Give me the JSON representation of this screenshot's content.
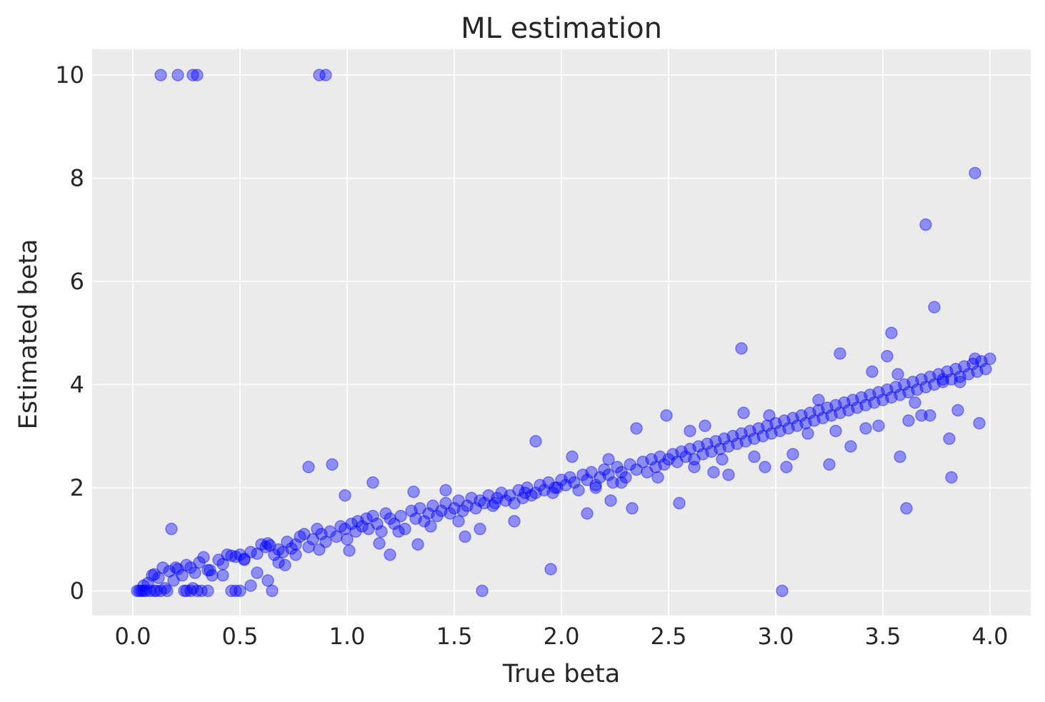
{
  "chart_data": {
    "type": "scatter",
    "title": "ML estimation",
    "xlabel": "True beta",
    "ylabel": "Estimated beta",
    "xlim": [
      -0.19,
      4.19
    ],
    "ylim": [
      -0.48,
      10.5
    ],
    "xticks": [
      0.0,
      0.5,
      1.0,
      1.5,
      2.0,
      2.5,
      3.0,
      3.5,
      4.0
    ],
    "xtick_labels": [
      "0.0",
      "0.5",
      "1.0",
      "1.5",
      "2.0",
      "2.5",
      "3.0",
      "3.5",
      "4.0"
    ],
    "yticks": [
      0,
      2,
      4,
      6,
      8,
      10
    ],
    "ytick_labels": [
      "0",
      "2",
      "4",
      "6",
      "8",
      "10"
    ],
    "grid": true,
    "background": "#ebebeb",
    "point_color": "#0000ff",
    "point_alpha": 0.4,
    "series": [
      {
        "x": [
          0.02,
          0.03,
          0.04,
          0.05,
          0.06,
          0.08,
          0.1,
          0.11,
          0.13,
          0.16,
          0.24,
          0.25,
          0.27,
          0.3,
          0.32,
          0.35,
          0.46,
          0.48,
          0.5,
          0.65,
          1.63,
          3.03,
          0.13,
          0.21,
          0.28,
          0.3,
          0.87,
          0.9,
          3.93,
          3.7,
          3.74,
          2.84,
          3.54,
          3.61,
          3.82,
          1.95,
          0.18,
          0.05,
          0.07,
          0.09,
          0.1,
          0.12,
          0.14,
          0.17,
          0.19,
          0.21,
          0.23,
          0.25,
          0.27,
          0.29,
          0.31,
          0.33,
          0.35,
          0.37,
          0.4,
          0.42,
          0.44,
          0.46,
          0.48,
          0.5,
          0.52,
          0.55,
          0.58,
          0.6,
          0.62,
          0.63,
          0.64,
          0.66,
          0.68,
          0.7,
          0.72,
          0.74,
          0.76,
          0.78,
          0.8,
          0.82,
          0.84,
          0.86,
          0.88,
          0.9,
          0.92,
          0.95,
          0.97,
          0.99,
          1.0,
          1.02,
          1.04,
          1.05,
          1.07,
          1.09,
          1.1,
          1.12,
          1.14,
          1.16,
          1.18,
          1.2,
          1.22,
          1.25,
          1.27,
          1.3,
          1.32,
          1.34,
          1.36,
          1.38,
          1.4,
          1.42,
          1.44,
          1.46,
          1.48,
          1.5,
          1.52,
          1.54,
          1.56,
          1.58,
          1.6,
          1.62,
          1.64,
          1.66,
          1.68,
          1.7,
          1.72,
          1.74,
          1.76,
          1.78,
          1.8,
          1.82,
          1.84,
          1.86,
          1.88,
          1.9,
          1.92,
          1.94,
          1.96,
          1.98,
          2.0,
          2.02,
          2.04,
          2.06,
          2.08,
          2.1,
          2.12,
          2.14,
          2.16,
          2.18,
          2.2,
          2.22,
          2.24,
          2.26,
          2.28,
          2.3,
          2.32,
          2.35,
          2.38,
          2.4,
          2.42,
          2.44,
          2.46,
          2.48,
          2.5,
          2.52,
          2.54,
          2.56,
          2.58,
          2.6,
          2.62,
          2.64,
          2.66,
          2.68,
          2.7,
          2.72,
          2.74,
          2.76,
          2.78,
          2.8,
          2.82,
          2.84,
          2.86,
          2.88,
          2.9,
          2.92,
          2.94,
          2.96,
          2.98,
          3.0,
          3.02,
          3.04,
          3.06,
          3.08,
          3.1,
          3.12,
          3.14,
          3.16,
          3.18,
          3.2,
          3.22,
          3.24,
          3.26,
          3.28,
          3.3,
          3.32,
          3.34,
          3.36,
          3.38,
          3.4,
          3.42,
          3.44,
          3.46,
          3.48,
          3.5,
          3.52,
          3.54,
          3.56,
          3.58,
          3.6,
          3.62,
          3.64,
          3.66,
          3.68,
          3.7,
          3.72,
          3.74,
          3.76,
          3.78,
          3.8,
          3.82,
          3.84,
          3.86,
          3.88,
          3.9,
          3.92,
          3.94,
          3.96,
          3.98,
          4.0,
          0.82,
          0.93,
          0.99,
          1.12,
          1.31,
          1.46,
          1.88,
          2.05,
          2.22,
          2.35,
          2.49,
          2.6,
          2.67,
          2.85,
          2.97,
          3.2,
          3.3,
          3.45,
          3.52,
          3.57,
          3.65,
          3.78,
          3.86,
          3.93,
          0.58,
          0.63,
          0.55,
          0.68,
          1.2,
          1.33,
          1.55,
          1.62,
          1.78,
          2.12,
          2.23,
          2.33,
          2.55,
          2.71,
          2.78,
          2.95,
          3.08,
          3.25,
          3.35,
          3.58,
          3.62,
          3.72,
          3.81,
          3.95,
          0.15,
          0.2,
          0.28,
          0.36,
          0.42,
          0.52,
          0.71,
          0.76,
          0.87,
          1.01,
          1.15,
          1.24,
          1.39,
          1.52,
          1.69,
          1.83,
          1.97,
          2.16,
          2.28,
          2.45,
          2.62,
          2.75,
          2.9,
          3.05,
          3.15,
          3.28,
          3.42,
          3.48,
          3.68,
          3.85
        ],
        "y": [
          0.0,
          0.0,
          0.0,
          0.0,
          0.0,
          0.0,
          0.0,
          0.0,
          0.0,
          0.0,
          0.0,
          0.0,
          0.0,
          0.0,
          0.0,
          0.0,
          0.0,
          0.0,
          0.0,
          0.0,
          0.0,
          0.0,
          10.0,
          10.0,
          10.0,
          10.0,
          10.0,
          10.0,
          8.1,
          7.1,
          5.5,
          4.7,
          5.0,
          1.6,
          2.2,
          0.42,
          1.2,
          0.1,
          0.15,
          0.3,
          0.32,
          0.25,
          0.45,
          0.38,
          0.2,
          0.42,
          0.3,
          0.5,
          0.45,
          0.35,
          0.55,
          0.65,
          0.4,
          0.3,
          0.6,
          0.52,
          0.7,
          0.68,
          0.66,
          0.7,
          0.62,
          0.75,
          0.72,
          0.9,
          0.85,
          0.92,
          0.88,
          0.7,
          0.8,
          0.75,
          0.95,
          0.82,
          0.9,
          1.05,
          1.1,
          0.85,
          1.0,
          1.2,
          1.1,
          0.95,
          1.15,
          1.05,
          1.25,
          1.2,
          1.0,
          1.3,
          1.15,
          1.35,
          1.25,
          1.4,
          1.2,
          1.45,
          1.3,
          1.15,
          1.5,
          1.4,
          1.3,
          1.45,
          1.2,
          1.55,
          1.4,
          1.6,
          1.35,
          1.5,
          1.65,
          1.45,
          1.55,
          1.7,
          1.5,
          1.6,
          1.75,
          1.55,
          1.65,
          1.8,
          1.6,
          1.75,
          1.7,
          1.85,
          1.65,
          1.8,
          1.9,
          1.75,
          1.85,
          1.7,
          1.95,
          1.8,
          2.0,
          1.85,
          1.9,
          2.05,
          1.95,
          2.1,
          1.9,
          2.0,
          2.15,
          2.05,
          2.2,
          2.1,
          1.95,
          2.25,
          2.15,
          2.3,
          2.05,
          2.2,
          2.35,
          2.25,
          2.1,
          2.4,
          2.3,
          2.2,
          2.45,
          2.35,
          2.5,
          2.3,
          2.55,
          2.4,
          2.6,
          2.45,
          2.55,
          2.65,
          2.5,
          2.7,
          2.6,
          2.75,
          2.55,
          2.8,
          2.65,
          2.85,
          2.7,
          2.9,
          2.75,
          2.95,
          2.8,
          3.0,
          2.85,
          3.05,
          2.9,
          3.1,
          2.95,
          3.15,
          3.0,
          3.2,
          3.05,
          3.25,
          3.1,
          3.3,
          3.15,
          3.35,
          3.2,
          3.4,
          3.25,
          3.45,
          3.3,
          3.5,
          3.35,
          3.55,
          3.4,
          3.6,
          3.45,
          3.65,
          3.5,
          3.7,
          3.55,
          3.75,
          3.6,
          3.8,
          3.65,
          3.85,
          3.7,
          3.9,
          3.75,
          3.95,
          3.8,
          4.0,
          3.85,
          4.05,
          3.9,
          4.1,
          3.95,
          4.15,
          4.0,
          4.2,
          4.05,
          4.25,
          4.1,
          4.3,
          4.15,
          4.35,
          4.2,
          4.4,
          4.25,
          4.45,
          4.3,
          4.5,
          2.4,
          2.45,
          1.85,
          2.1,
          1.92,
          1.95,
          2.9,
          2.6,
          2.55,
          3.15,
          3.4,
          3.1,
          3.2,
          3.45,
          3.4,
          3.7,
          4.6,
          4.25,
          4.55,
          4.2,
          3.65,
          4.1,
          4.05,
          4.5,
          0.35,
          0.2,
          0.1,
          0.55,
          0.7,
          0.9,
          1.05,
          1.2,
          1.35,
          1.5,
          1.75,
          1.6,
          1.7,
          2.3,
          2.25,
          2.4,
          2.65,
          2.45,
          2.8,
          2.6,
          3.3,
          3.4,
          2.95,
          3.25,
          0.05,
          0.45,
          0.05,
          0.4,
          0.3,
          0.6,
          0.5,
          0.7,
          0.8,
          0.78,
          0.92,
          1.15,
          1.25,
          1.35,
          1.7,
          1.9,
          2.0,
          2.0,
          2.1,
          2.2,
          2.4,
          2.55,
          2.6,
          2.4,
          3.05,
          3.1,
          3.15,
          3.2,
          3.4,
          3.5
        ]
      }
    ]
  }
}
